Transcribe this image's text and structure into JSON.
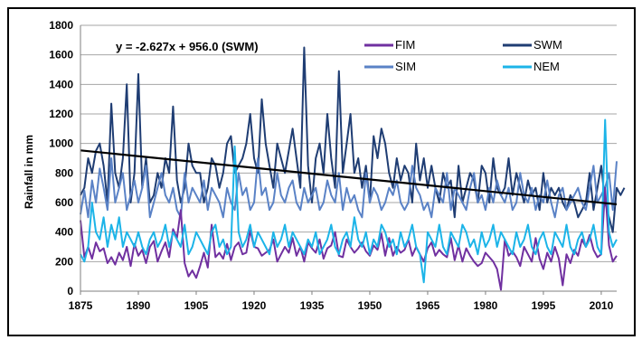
{
  "chart_data": {
    "type": "line",
    "title": "",
    "xlabel": "",
    "ylabel": "Rainfall in mm",
    "xlim": [
      1875,
      2014
    ],
    "ylim": [
      0,
      1800
    ],
    "x_ticks": [
      1875,
      1890,
      1905,
      1920,
      1935,
      1950,
      1965,
      1980,
      1995,
      2010
    ],
    "y_ticks": [
      0,
      200,
      400,
      600,
      800,
      1000,
      1200,
      1400,
      1600,
      1800
    ],
    "grid": "horizontal",
    "legend_position": "top-right",
    "annotation": "y = -2.627x + 956.0 (SWM)",
    "trendline": {
      "series": "SWM",
      "slope": -2.627,
      "intercept": 956.0,
      "x0": 1875
    },
    "colors": {
      "FIM": "#7030a0",
      "SWM": "#1f3d73",
      "SIM": "#5a82c6",
      "NEM": "#1cb4e8"
    },
    "series": [
      {
        "name": "FIM",
        "start_year": 1875,
        "values": [
          480,
          230,
          300,
          220,
          330,
          270,
          290,
          190,
          230,
          180,
          260,
          210,
          300,
          170,
          320,
          240,
          280,
          190,
          300,
          340,
          200,
          270,
          330,
          230,
          420,
          360,
          550,
          190,
          100,
          140,
          90,
          170,
          260,
          160,
          450,
          230,
          260,
          220,
          320,
          210,
          300,
          330,
          250,
          260,
          410,
          300,
          290,
          240,
          260,
          280,
          350,
          200,
          250,
          300,
          260,
          360,
          240,
          300,
          200,
          330,
          290,
          260,
          350,
          220,
          290,
          310,
          400,
          240,
          230,
          350,
          300,
          260,
          290,
          330,
          270,
          240,
          310,
          280,
          390,
          240,
          360,
          240,
          300,
          260,
          280,
          350,
          240,
          300,
          250,
          200,
          290,
          330,
          240,
          280,
          250,
          230,
          360,
          210,
          310,
          200,
          290,
          240,
          200,
          170,
          190,
          260,
          230,
          200,
          150,
          10,
          350,
          240,
          270,
          230,
          170,
          300,
          250,
          200,
          360,
          220,
          150,
          260,
          200,
          300,
          220,
          40,
          250,
          190,
          280,
          240,
          350,
          300,
          380,
          280,
          230,
          250,
          700,
          310,
          200,
          240
        ]
      },
      {
        "name": "SWM",
        "start_year": 1875,
        "values": [
          650,
          700,
          900,
          800,
          950,
          1000,
          850,
          600,
          1270,
          800,
          700,
          900,
          1400,
          600,
          800,
          1470,
          700,
          900,
          600,
          650,
          800,
          700,
          900,
          800,
          1250,
          750,
          600,
          700,
          1000,
          850,
          800,
          800,
          600,
          700,
          900,
          850,
          700,
          800,
          1000,
          1050,
          800,
          850,
          900,
          1000,
          1200,
          900,
          800,
          1300,
          1000,
          850,
          700,
          1000,
          900,
          800,
          950,
          1100,
          900,
          700,
          1650,
          850,
          600,
          900,
          1000,
          800,
          1200,
          900,
          700,
          1490,
          800,
          1000,
          1200,
          800,
          900,
          700,
          850,
          600,
          1050,
          900,
          1100,
          1000,
          800,
          700,
          900,
          750,
          850,
          800,
          600,
          1000,
          750,
          900,
          700,
          850,
          700,
          600,
          800,
          700,
          750,
          500,
          850,
          600,
          700,
          800,
          750,
          600,
          850,
          800,
          600,
          900,
          700,
          650,
          700,
          900,
          650,
          800,
          700,
          600,
          750,
          650,
          700,
          550,
          800,
          600,
          700,
          650,
          700,
          600,
          550,
          650,
          600,
          500,
          550,
          600,
          800,
          550,
          700,
          850,
          600,
          500,
          400,
          700,
          650,
          700
        ]
      },
      {
        "name": "SIM",
        "start_year": 1875,
        "values": [
          520,
          680,
          500,
          750,
          600,
          830,
          700,
          550,
          900,
          600,
          700,
          800,
          550,
          650,
          750,
          600,
          700,
          850,
          500,
          600,
          700,
          800,
          650,
          600,
          700,
          550,
          500,
          800,
          600,
          700,
          650,
          600,
          750,
          550,
          700,
          650,
          600,
          500,
          700,
          600,
          550,
          800,
          650,
          700,
          550,
          600,
          900,
          650,
          700,
          550,
          600,
          800,
          650,
          600,
          700,
          750,
          600,
          550,
          700,
          600,
          650,
          700,
          550,
          600,
          750,
          650,
          600,
          800,
          550,
          700,
          600,
          650,
          550,
          500,
          800,
          600,
          700,
          650,
          550,
          600,
          700,
          650,
          750,
          600,
          550,
          600,
          850,
          700,
          650,
          550,
          600,
          500,
          700,
          650,
          600,
          800,
          550,
          700,
          650,
          600,
          550,
          700,
          800,
          600,
          650,
          550,
          700,
          600,
          750,
          650,
          600,
          700,
          550,
          600,
          800,
          650,
          600,
          700,
          550,
          650,
          600,
          750,
          600,
          500,
          650,
          700,
          550,
          600,
          650,
          700,
          600,
          550,
          700,
          850,
          600,
          650,
          700,
          800,
          550,
          880
        ]
      },
      {
        "name": "NEM",
        "start_year": 1875,
        "values": [
          250,
          200,
          300,
          600,
          400,
          350,
          500,
          300,
          450,
          350,
          500,
          300,
          400,
          350,
          300,
          400,
          300,
          250,
          350,
          400,
          300,
          350,
          450,
          300,
          400,
          350,
          300,
          450,
          250,
          300,
          400,
          350,
          300,
          250,
          400,
          450,
          300,
          350,
          250,
          300,
          980,
          400,
          300,
          350,
          450,
          300,
          400,
          350,
          300,
          250,
          400,
          300,
          350,
          450,
          300,
          400,
          350,
          300,
          250,
          350,
          300,
          400,
          250,
          300,
          350,
          450,
          300,
          250,
          350,
          400,
          300,
          500,
          350,
          300,
          400,
          250,
          350,
          300,
          450,
          400,
          300,
          350,
          250,
          400,
          300,
          350,
          450,
          300,
          250,
          60,
          400,
          350,
          300,
          450,
          300,
          250,
          400,
          350,
          300,
          450,
          400,
          300,
          350,
          250,
          400,
          300,
          350,
          450,
          300,
          400,
          350,
          300,
          250,
          400,
          300,
          350,
          450,
          300,
          250,
          350,
          400,
          300,
          250,
          400,
          350,
          300,
          450,
          300,
          250,
          350,
          400,
          300,
          350,
          450,
          300,
          250,
          1160,
          400,
          300,
          350
        ]
      }
    ]
  }
}
